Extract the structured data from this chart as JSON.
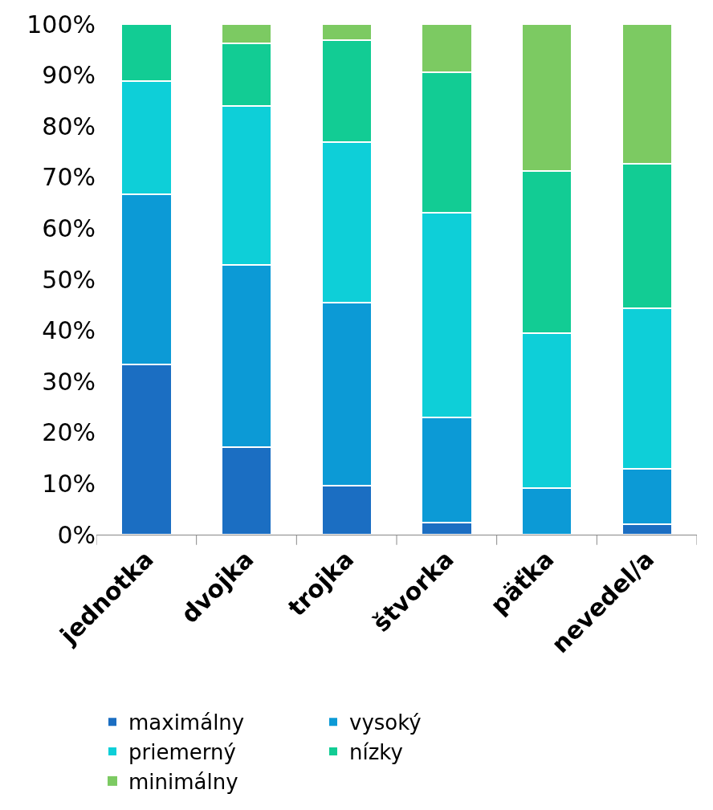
{
  "chart_data": {
    "type": "bar",
    "stacked": true,
    "categories": [
      "jednotka",
      "dvojka",
      "trojka",
      "štvorka",
      "päťka",
      "nevedel/a"
    ],
    "series": [
      {
        "name": "maximálny",
        "color": "#1b6ec2",
        "values": [
          33.3,
          17.1,
          9.6,
          2.4,
          0,
          2.1
        ]
      },
      {
        "name": "vysoký",
        "color": "#0c9ad6",
        "values": [
          33.3,
          35.7,
          35.8,
          20.6,
          9.1,
          10.8
        ]
      },
      {
        "name": "priemerný",
        "color": "#0ecfd8",
        "values": [
          22.2,
          31.2,
          31.5,
          40.0,
          30.3,
          31.4
        ]
      },
      {
        "name": "nízky",
        "color": "#12cc94",
        "values": [
          11.2,
          12.3,
          20.0,
          27.6,
          31.8,
          28.3
        ]
      },
      {
        "name": "minimálny",
        "color": "#7cca62",
        "values": [
          0,
          3.7,
          3.1,
          9.4,
          28.8,
          27.4
        ]
      }
    ],
    "ylim": [
      0,
      100
    ],
    "yticks": [
      {
        "value": 0,
        "label": "0%"
      },
      {
        "value": 10,
        "label": "10%"
      },
      {
        "value": 20,
        "label": "20%"
      },
      {
        "value": 30,
        "label": "30%"
      },
      {
        "value": 40,
        "label": "40%"
      },
      {
        "value": 50,
        "label": "50%"
      },
      {
        "value": 60,
        "label": "60%"
      },
      {
        "value": 70,
        "label": "70%"
      },
      {
        "value": 80,
        "label": "80%"
      },
      {
        "value": 90,
        "label": "90%"
      },
      {
        "value": 100,
        "label": "100%"
      }
    ],
    "legend": "bottom"
  }
}
